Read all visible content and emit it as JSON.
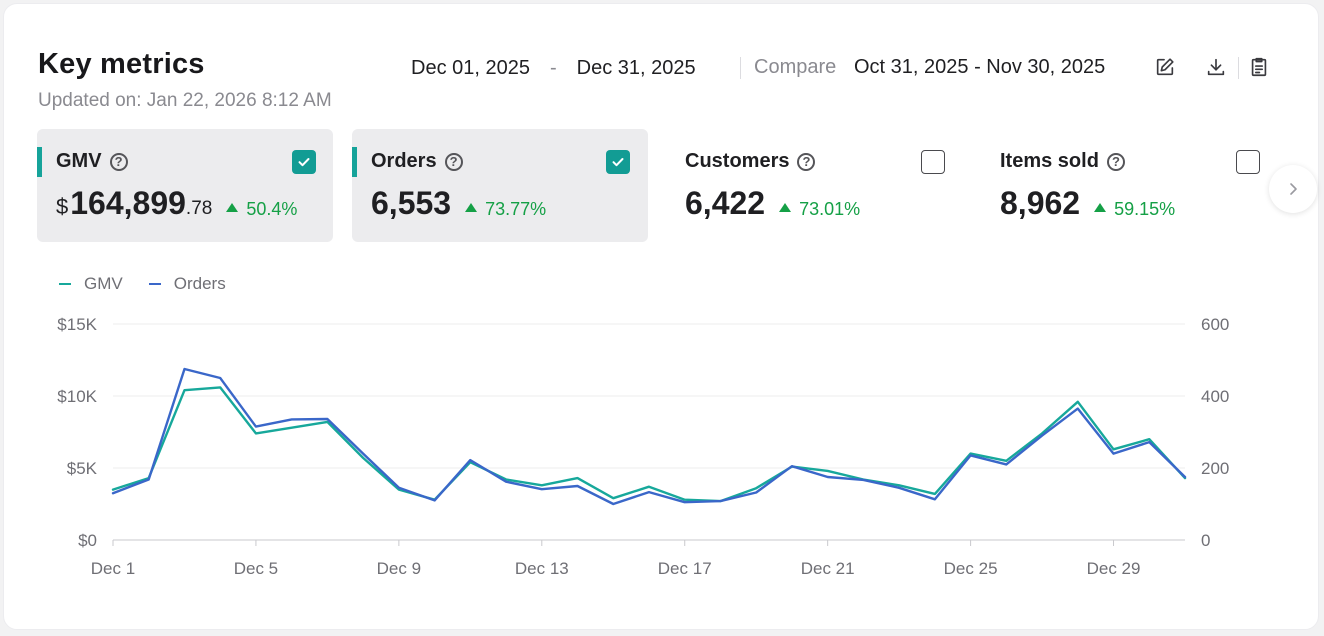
{
  "header": {
    "title": "Key metrics",
    "updated": "Updated on: Jan 22, 2026 8:12 AM",
    "date_start": "Dec 01, 2025",
    "date_sep": "-",
    "date_end": "Dec 31, 2025",
    "compare_label": "Compare",
    "compare_range": "Oct 31, 2025 - Nov 30, 2025",
    "tools": [
      "edit-icon",
      "download-icon",
      "clipboard-icon"
    ]
  },
  "metrics": [
    {
      "name": "GMV",
      "currency": "$",
      "value": "164,899",
      "cents": ".78",
      "delta": "50.4%",
      "checked": true
    },
    {
      "name": "Orders",
      "value": "6,553",
      "delta": "73.77%",
      "checked": true
    },
    {
      "name": "Customers",
      "value": "6,422",
      "delta": "73.01%",
      "checked": false
    },
    {
      "name": "Items sold",
      "value": "8,962",
      "delta": "59.15%",
      "checked": false
    }
  ],
  "colors": {
    "gmv": "#17a89b",
    "orders": "#3a67c9",
    "up": "#15a046",
    "accent": "#129c94"
  },
  "chart_data": {
    "type": "line",
    "legend": [
      "GMV",
      "Orders"
    ],
    "x": [
      "Dec 1",
      "Dec 2",
      "Dec 3",
      "Dec 4",
      "Dec 5",
      "Dec 6",
      "Dec 7",
      "Dec 8",
      "Dec 9",
      "Dec 10",
      "Dec 11",
      "Dec 12",
      "Dec 13",
      "Dec 14",
      "Dec 15",
      "Dec 16",
      "Dec 17",
      "Dec 18",
      "Dec 19",
      "Dec 20",
      "Dec 21",
      "Dec 22",
      "Dec 23",
      "Dec 24",
      "Dec 25",
      "Dec 26",
      "Dec 27",
      "Dec 28",
      "Dec 29",
      "Dec 30",
      "Dec 31"
    ],
    "x_tick_labels": [
      "Dec 1",
      "Dec 5",
      "Dec 9",
      "Dec 13",
      "Dec 17",
      "Dec 21",
      "Dec 25",
      "Dec 29"
    ],
    "series": [
      {
        "name": "GMV",
        "axis": "left",
        "values": [
          3500,
          4300,
          10400,
          10600,
          7400,
          7800,
          8200,
          5700,
          3500,
          2800,
          5400,
          4200,
          3800,
          4300,
          2900,
          3700,
          2800,
          2700,
          3600,
          5100,
          4800,
          4200,
          3800,
          3200,
          6000,
          5500,
          7400,
          9600,
          6300,
          7000,
          4300
        ]
      },
      {
        "name": "Orders",
        "axis": "right",
        "values": [
          130,
          168,
          475,
          450,
          315,
          335,
          336,
          240,
          145,
          110,
          222,
          162,
          141,
          150,
          100,
          133,
          105,
          108,
          132,
          205,
          175,
          167,
          145,
          113,
          235,
          210,
          290,
          365,
          240,
          272,
          175
        ]
      }
    ],
    "y_left": {
      "ticks": [
        "$0",
        "$5K",
        "$10K",
        "$15K"
      ],
      "range": [
        0,
        15000
      ]
    },
    "y_right": {
      "ticks": [
        "0",
        "200",
        "400",
        "600"
      ],
      "range": [
        0,
        600
      ]
    },
    "grid": true,
    "legend_position": "top-left"
  }
}
